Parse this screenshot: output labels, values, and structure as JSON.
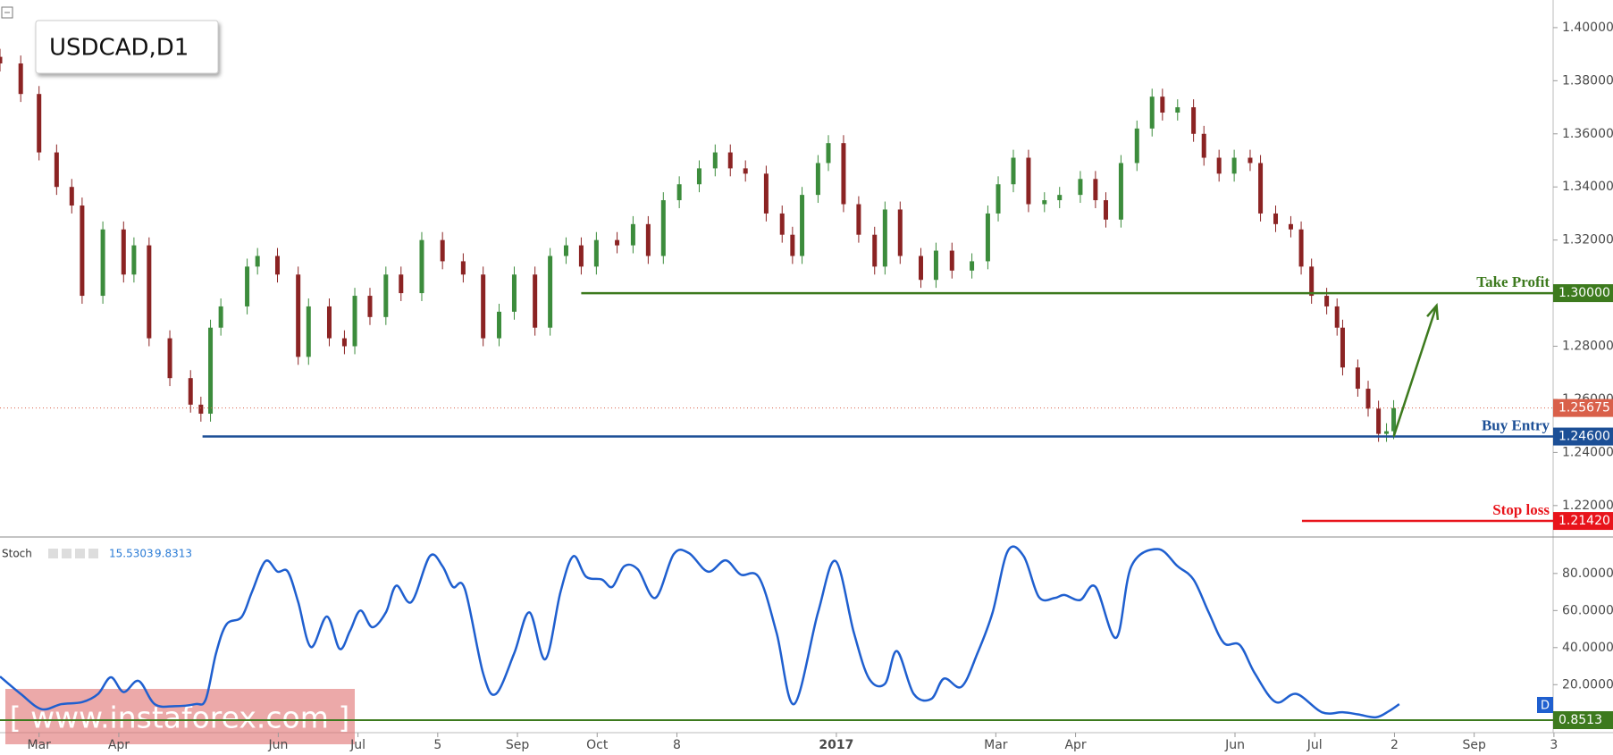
{
  "chart_data": [
    {
      "type": "candlestick",
      "title": "USDCAD,D1",
      "up_color": "#3c8c3c",
      "down_color": "#8b2323",
      "xlim": [
        -0.49,
        18.99
      ],
      "ylim": [
        1.2085,
        1.4104
      ],
      "yticks": [
        {
          "value": 1.22,
          "label": "1.22000"
        },
        {
          "value": 1.24,
          "label": "1.24000"
        },
        {
          "value": 1.26,
          "label": "1.26000"
        },
        {
          "value": 1.28,
          "label": "1.28000"
        },
        {
          "value": 1.32,
          "label": "1.32000"
        },
        {
          "value": 1.34,
          "label": "1.34000"
        },
        {
          "value": 1.36,
          "label": "1.36000"
        },
        {
          "value": 1.38,
          "label": "1.38000"
        },
        {
          "value": 1.4,
          "label": "1.40000"
        }
      ],
      "x": [
        -0.49,
        -0.23,
        0,
        0.22,
        0.41,
        0.54,
        0.8,
        1.06,
        1.19,
        1.38,
        1.64,
        1.9,
        2.03,
        2.15,
        2.28,
        2.61,
        2.74,
        2.99,
        3.25,
        3.38,
        3.64,
        3.83,
        3.96,
        4.15,
        4.35,
        4.54,
        4.8,
        5.06,
        5.32,
        5.57,
        5.77,
        5.96,
        6.22,
        6.41,
        6.61,
        6.8,
        6.99,
        7.25,
        7.45,
        7.64,
        7.83,
        8.03,
        8.28,
        8.48,
        8.67,
        8.86,
        9.12,
        9.32,
        9.45,
        9.57,
        9.77,
        9.9,
        10.09,
        10.28,
        10.48,
        10.61,
        10.8,
        11.06,
        11.25,
        11.45,
        11.7,
        11.9,
        12.03,
        12.22,
        12.41,
        12.61,
        12.8,
        13.06,
        13.25,
        13.38,
        13.57,
        13.77,
        13.96,
        14.09,
        14.28,
        14.48,
        14.61,
        14.8,
        14.99,
        15.19,
        15.32,
        15.51,
        15.7,
        15.83,
        15.96,
        16.15,
        16.28,
        16.35,
        16.54,
        16.67,
        16.8,
        16.9,
        16.99
      ],
      "ohlc": [
        [
          1.389,
          1.392,
          1.3835,
          1.3865
        ],
        [
          1.3865,
          1.3895,
          1.372,
          1.375
        ],
        [
          1.375,
          1.378,
          1.35,
          1.353
        ],
        [
          1.353,
          1.356,
          1.337,
          1.34
        ],
        [
          1.34,
          1.343,
          1.33,
          1.333
        ],
        [
          1.333,
          1.336,
          1.296,
          1.299
        ],
        [
          1.299,
          1.327,
          1.296,
          1.324
        ],
        [
          1.324,
          1.327,
          1.304,
          1.307
        ],
        [
          1.307,
          1.321,
          1.304,
          1.318
        ],
        [
          1.318,
          1.321,
          1.28,
          1.283
        ],
        [
          1.283,
          1.286,
          1.265,
          1.268
        ],
        [
          1.268,
          1.271,
          1.255,
          1.258
        ],
        [
          1.258,
          1.261,
          1.2516,
          1.2546
        ],
        [
          1.2546,
          1.29,
          1.2516,
          1.287
        ],
        [
          1.287,
          1.298,
          1.284,
          1.295
        ],
        [
          1.295,
          1.313,
          1.292,
          1.31
        ],
        [
          1.31,
          1.317,
          1.307,
          1.314
        ],
        [
          1.314,
          1.317,
          1.304,
          1.307
        ],
        [
          1.307,
          1.31,
          1.273,
          1.276
        ],
        [
          1.276,
          1.298,
          1.273,
          1.295
        ],
        [
          1.295,
          1.298,
          1.28,
          1.283
        ],
        [
          1.283,
          1.286,
          1.277,
          1.28
        ],
        [
          1.28,
          1.302,
          1.277,
          1.299
        ],
        [
          1.299,
          1.302,
          1.288,
          1.291
        ],
        [
          1.291,
          1.31,
          1.288,
          1.307
        ],
        [
          1.307,
          1.31,
          1.297,
          1.3
        ],
        [
          1.3,
          1.323,
          1.297,
          1.32
        ],
        [
          1.32,
          1.323,
          1.309,
          1.312
        ],
        [
          1.312,
          1.315,
          1.304,
          1.307
        ],
        [
          1.307,
          1.31,
          1.28,
          1.283
        ],
        [
          1.283,
          1.296,
          1.28,
          1.293
        ],
        [
          1.293,
          1.31,
          1.29,
          1.307
        ],
        [
          1.307,
          1.31,
          1.284,
          1.287
        ],
        [
          1.287,
          1.317,
          1.284,
          1.314
        ],
        [
          1.314,
          1.321,
          1.311,
          1.318
        ],
        [
          1.318,
          1.321,
          1.307,
          1.31
        ],
        [
          1.31,
          1.323,
          1.307,
          1.32
        ],
        [
          1.32,
          1.323,
          1.315,
          1.318
        ],
        [
          1.318,
          1.329,
          1.315,
          1.326
        ],
        [
          1.326,
          1.329,
          1.311,
          1.314
        ],
        [
          1.314,
          1.338,
          1.311,
          1.335
        ],
        [
          1.335,
          1.344,
          1.332,
          1.341
        ],
        [
          1.341,
          1.35,
          1.338,
          1.347
        ],
        [
          1.347,
          1.356,
          1.344,
          1.353
        ],
        [
          1.353,
          1.356,
          1.344,
          1.347
        ],
        [
          1.347,
          1.35,
          1.342,
          1.345
        ],
        [
          1.345,
          1.348,
          1.327,
          1.33
        ],
        [
          1.33,
          1.333,
          1.319,
          1.322
        ],
        [
          1.322,
          1.325,
          1.311,
          1.314
        ],
        [
          1.314,
          1.34,
          1.311,
          1.337
        ],
        [
          1.337,
          1.352,
          1.334,
          1.349
        ],
        [
          1.349,
          1.3595,
          1.346,
          1.3565
        ],
        [
          1.3565,
          1.3595,
          1.3305,
          1.3335
        ],
        [
          1.3335,
          1.3365,
          1.319,
          1.322
        ],
        [
          1.322,
          1.325,
          1.307,
          1.31
        ],
        [
          1.31,
          1.3345,
          1.307,
          1.3315
        ],
        [
          1.3315,
          1.3345,
          1.311,
          1.314
        ],
        [
          1.314,
          1.317,
          1.302,
          1.305
        ],
        [
          1.305,
          1.319,
          1.302,
          1.316
        ],
        [
          1.316,
          1.319,
          1.3055,
          1.3085
        ],
        [
          1.3085,
          1.315,
          1.3055,
          1.312
        ],
        [
          1.312,
          1.333,
          1.309,
          1.33
        ],
        [
          1.33,
          1.344,
          1.327,
          1.341
        ],
        [
          1.341,
          1.354,
          1.338,
          1.351
        ],
        [
          1.351,
          1.354,
          1.3305,
          1.3335
        ],
        [
          1.3335,
          1.338,
          1.3305,
          1.335
        ],
        [
          1.335,
          1.34,
          1.332,
          1.337
        ],
        [
          1.337,
          1.346,
          1.334,
          1.343
        ],
        [
          1.343,
          1.346,
          1.332,
          1.335
        ],
        [
          1.335,
          1.338,
          1.3247,
          1.3277
        ],
        [
          1.3277,
          1.352,
          1.3247,
          1.349
        ],
        [
          1.349,
          1.365,
          1.346,
          1.362
        ],
        [
          1.362,
          1.377,
          1.359,
          1.374
        ],
        [
          1.374,
          1.377,
          1.365,
          1.368
        ],
        [
          1.368,
          1.373,
          1.365,
          1.37
        ],
        [
          1.37,
          1.373,
          1.357,
          1.36
        ],
        [
          1.36,
          1.363,
          1.348,
          1.351
        ],
        [
          1.351,
          1.354,
          1.342,
          1.345
        ],
        [
          1.345,
          1.354,
          1.342,
          1.351
        ],
        [
          1.351,
          1.354,
          1.346,
          1.349
        ],
        [
          1.349,
          1.352,
          1.327,
          1.33
        ],
        [
          1.33,
          1.333,
          1.323,
          1.326
        ],
        [
          1.326,
          1.329,
          1.321,
          1.324
        ],
        [
          1.324,
          1.327,
          1.307,
          1.31
        ],
        [
          1.31,
          1.313,
          1.296,
          1.299
        ],
        [
          1.299,
          1.302,
          1.292,
          1.295
        ],
        [
          1.295,
          1.298,
          1.284,
          1.287
        ],
        [
          1.287,
          1.29,
          1.269,
          1.272
        ],
        [
          1.272,
          1.275,
          1.261,
          1.264
        ],
        [
          1.264,
          1.267,
          1.2535,
          1.2565
        ],
        [
          1.2565,
          1.2595,
          1.244,
          1.247
        ],
        [
          1.247,
          1.251,
          1.244,
          1.248
        ],
        [
          1.248,
          1.2597,
          1.245,
          1.2567
        ]
      ],
      "current_price": {
        "value": 1.25675,
        "label": "1.25675",
        "color": "#d9604a"
      },
      "levels": [
        {
          "name": "Take Profit",
          "value": 1.3,
          "label": "1.30000",
          "color": "#3d7a1e",
          "from_x": 6.8
        },
        {
          "name": "Buy Entry",
          "value": 1.246,
          "label": "1.24600",
          "color": "#1c4f96",
          "from_x": 2.05
        },
        {
          "name": "Stop loss",
          "value": 1.2142,
          "label": "1.21420",
          "color": "#e8141b",
          "from_x": 15.84
        }
      ],
      "watermark": "[ www.instaforex.com ]"
    },
    {
      "type": "line",
      "title": "Stoch",
      "readout": [
        15.5303,
        9.8313
      ],
      "color": "#1f5fcf",
      "interval_badge": "D",
      "xlim": [
        -0.49,
        18.99
      ],
      "ylim": [
        -5.9,
        99.2
      ],
      "yticks": [
        {
          "value": 20,
          "label": "20.0000"
        },
        {
          "value": 40,
          "label": "40.0000"
        },
        {
          "value": 60,
          "label": "60.0000"
        },
        {
          "value": 80,
          "label": "80.0000"
        }
      ],
      "xticks": [
        {
          "value": 0,
          "label": "Mar"
        },
        {
          "value": 1,
          "label": "Apr"
        },
        {
          "value": 3,
          "label": "Jun"
        },
        {
          "value": 4,
          "label": "Jul"
        },
        5,
        {
          "value": 6,
          "label": "Sep"
        },
        {
          "value": 7,
          "label": "Oct"
        },
        8,
        {
          "value": 10,
          "label": "2017",
          "bold": true
        },
        {
          "value": 12,
          "label": "Mar"
        },
        {
          "value": 13,
          "label": "Apr"
        },
        {
          "value": 15,
          "label": "Jun"
        },
        {
          "value": 16,
          "label": "Jul"
        },
        {
          "value": 17,
          "label": "2"
        },
        {
          "value": 18,
          "label": "Sep"
        },
        {
          "value": 19,
          "label": "3"
        }
      ],
      "x": [
        -0.49,
        -0.23,
        0.03,
        0.28,
        0.54,
        0.74,
        0.9,
        1.06,
        1.25,
        1.45,
        1.7,
        1.96,
        2.09,
        2.22,
        2.35,
        2.54,
        2.67,
        2.84,
        2.99,
        3.12,
        3.25,
        3.41,
        3.61,
        3.77,
        3.9,
        4.03,
        4.18,
        4.35,
        4.48,
        4.67,
        4.9,
        5.06,
        5.19,
        5.34,
        5.57,
        5.73,
        5.96,
        6.15,
        6.35,
        6.54,
        6.7,
        6.86,
        7.06,
        7.19,
        7.34,
        7.51,
        7.73,
        7.96,
        8.15,
        8.39,
        8.61,
        8.8,
        9.03,
        9.25,
        9.47,
        9.77,
        9.99,
        10.22,
        10.41,
        10.61,
        10.76,
        10.97,
        11.19,
        11.35,
        11.57,
        11.77,
        11.96,
        12.15,
        12.35,
        12.54,
        12.74,
        12.86,
        13.06,
        13.25,
        13.51,
        13.7,
        14.03,
        14.28,
        14.48,
        14.67,
        14.86,
        15.06,
        15.25,
        15.51,
        15.77,
        16.09,
        16.35,
        16.54,
        16.77,
        16.93,
        17.06
      ],
      "values": [
        24.4,
        15,
        6.8,
        9.5,
        10.6,
        15,
        24,
        16,
        22,
        9.5,
        8.4,
        9.5,
        12,
        37,
        52.5,
        56.5,
        70,
        86.7,
        81,
        81,
        64.6,
        40.3,
        56.8,
        39.3,
        49,
        60,
        51,
        59,
        73.4,
        64.6,
        89.3,
        83.9,
        72.8,
        71.7,
        26,
        15,
        37,
        59,
        33.7,
        70,
        89.3,
        78.3,
        76.7,
        72.8,
        83.9,
        82.2,
        66.8,
        90.4,
        91,
        81,
        87.1,
        79.4,
        77.8,
        48,
        9.5,
        59,
        86.7,
        48,
        23.3,
        20.5,
        38.1,
        15,
        12.3,
        23.3,
        18.9,
        37,
        59,
        92.1,
        89.3,
        67.3,
        66.8,
        68.4,
        65.7,
        72.8,
        45.3,
        83.9,
        93.2,
        83.9,
        76.7,
        59,
        42.5,
        41.4,
        26,
        10.6,
        15,
        5.1,
        5.1,
        4,
        2.4,
        5.7,
        9.5
      ],
      "levels": [
        {
          "value": 0.8513,
          "color": "#3d7a1e"
        }
      ]
    }
  ]
}
